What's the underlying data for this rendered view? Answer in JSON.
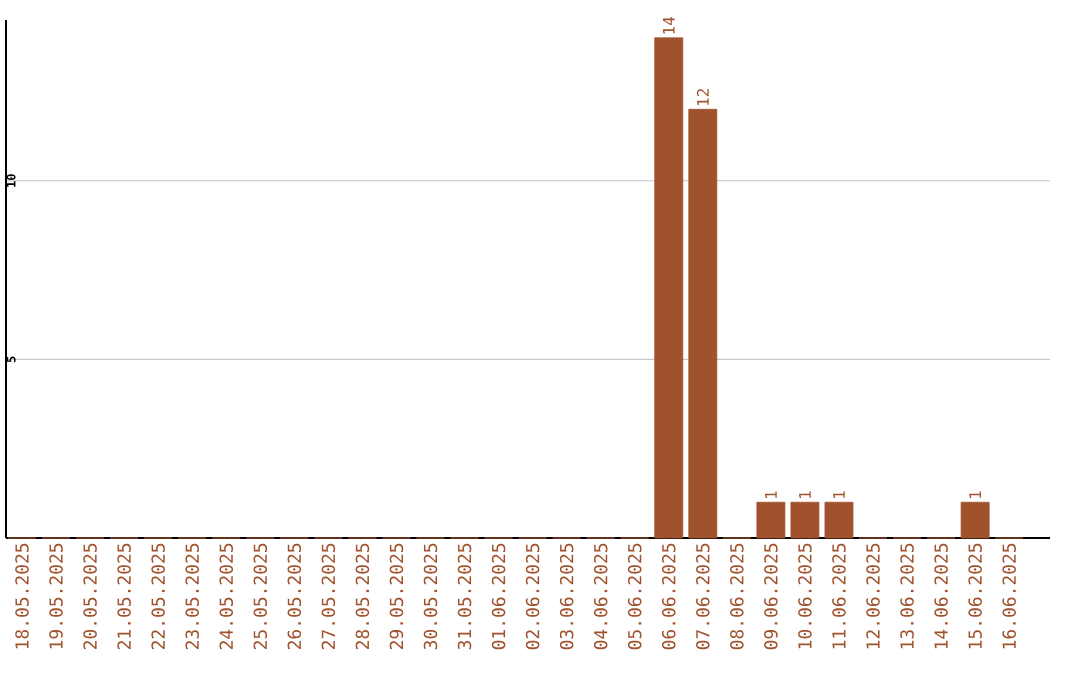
{
  "chart_data": {
    "type": "bar",
    "categories": [
      "18.05.2025",
      "19.05.2025",
      "20.05.2025",
      "21.05.2025",
      "22.05.2025",
      "23.05.2025",
      "24.05.2025",
      "25.05.2025",
      "26.05.2025",
      "27.05.2025",
      "28.05.2025",
      "29.05.2025",
      "30.05.2025",
      "31.05.2025",
      "01.06.2025",
      "02.06.2025",
      "03.06.2025",
      "04.06.2025",
      "05.06.2025",
      "06.06.2025",
      "07.06.2025",
      "08.06.2025",
      "09.06.2025",
      "10.06.2025",
      "11.06.2025",
      "12.06.2025",
      "13.06.2025",
      "14.06.2025",
      "15.06.2025",
      "16.06.2025"
    ],
    "values": [
      0,
      0,
      0,
      0,
      0,
      0,
      0,
      0,
      0,
      0,
      0,
      0,
      0,
      0,
      0,
      0,
      0,
      0,
      0,
      14,
      12,
      0,
      1,
      1,
      1,
      0,
      0,
      0,
      1,
      0
    ],
    "value_labels": [
      null,
      null,
      null,
      null,
      null,
      null,
      null,
      null,
      null,
      null,
      null,
      null,
      null,
      null,
      null,
      null,
      null,
      null,
      null,
      "14",
      "12",
      null,
      "1",
      "1",
      "1",
      null,
      null,
      null,
      "1",
      null
    ],
    "color": "#a0522d",
    "ylim": [
      0,
      14.5
    ],
    "yticks": [
      5,
      10
    ],
    "grid": "y"
  }
}
